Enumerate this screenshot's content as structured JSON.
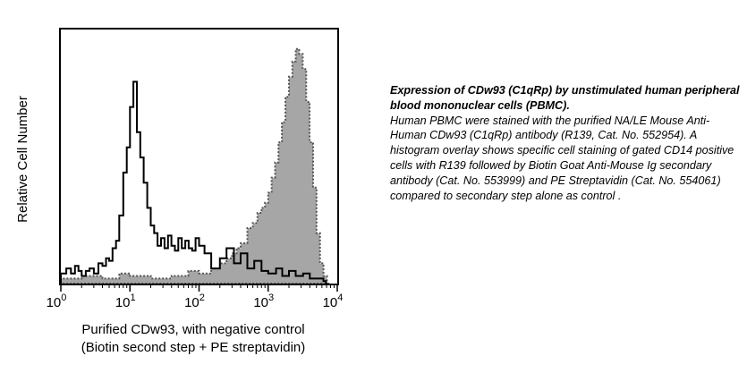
{
  "chart_data": {
    "type": "area",
    "xscale": "log",
    "xlim": [
      1,
      10000
    ],
    "ylim": [
      0,
      1
    ],
    "grid": false,
    "ylabel": "Relative Cell Number",
    "xlabel_line1": "Purified CDw93, with negative control",
    "xlabel_line2": "(Biotin second step + PE streptavidin)",
    "xticks": [
      {
        "value": 1,
        "base": "10",
        "exp": "0"
      },
      {
        "value": 10,
        "base": "10",
        "exp": "1"
      },
      {
        "value": 100,
        "base": "10",
        "exp": "2"
      },
      {
        "value": 1000,
        "base": "10",
        "exp": "3"
      },
      {
        "value": 10000,
        "base": "10",
        "exp": "4"
      }
    ],
    "series": [
      {
        "style": "open line (secondary step alone control)",
        "color": "#000000",
        "x": [
          1,
          1.2,
          1.4,
          1.6,
          1.8,
          2.0,
          2.3,
          2.6,
          3.0,
          3.5,
          4.0,
          4.5,
          5.0,
          5.6,
          6.3,
          7.0,
          8.0,
          9.0,
          10.0,
          11.2,
          12.6,
          14.1,
          15.8,
          17.8,
          20.0,
          22.4,
          25.1,
          28.2,
          31.6,
          35.5,
          39.8,
          44.7,
          50.1,
          56.2,
          63.1,
          70.8,
          79.4,
          89.1,
          100,
          120,
          150,
          200,
          250,
          320,
          400,
          500,
          630,
          800,
          1000,
          1300,
          1600,
          2000,
          2500,
          3200,
          4000,
          5000,
          6300
        ],
        "y": [
          0.04,
          0.06,
          0.04,
          0.07,
          0.05,
          0.03,
          0.05,
          0.06,
          0.04,
          0.08,
          0.07,
          0.1,
          0.09,
          0.14,
          0.17,
          0.27,
          0.44,
          0.54,
          0.7,
          0.8,
          0.6,
          0.5,
          0.4,
          0.3,
          0.23,
          0.2,
          0.15,
          0.18,
          0.14,
          0.19,
          0.15,
          0.13,
          0.18,
          0.14,
          0.17,
          0.14,
          0.13,
          0.18,
          0.15,
          0.12,
          0.06,
          0.1,
          0.14,
          0.08,
          0.12,
          0.06,
          0.09,
          0.05,
          0.04,
          0.06,
          0.03,
          0.05,
          0.03,
          0.04,
          0.02,
          0.02,
          0.01
        ]
      },
      {
        "style": "filled grey (CDw93 stained)",
        "color": "#a6a6a6",
        "x": [
          1,
          2,
          4,
          7,
          10,
          20,
          40,
          70,
          100,
          150,
          200,
          250,
          300,
          350,
          400,
          500,
          600,
          700,
          800,
          900,
          1000,
          1120,
          1260,
          1410,
          1580,
          1780,
          2000,
          2240,
          2510,
          2820,
          3160,
          3550,
          3980,
          4470,
          5010,
          5620,
          6310,
          7080
        ],
        "y": [
          0.02,
          0.03,
          0.02,
          0.04,
          0.03,
          0.02,
          0.03,
          0.05,
          0.04,
          0.06,
          0.08,
          0.1,
          0.12,
          0.14,
          0.16,
          0.22,
          0.24,
          0.28,
          0.3,
          0.32,
          0.36,
          0.42,
          0.48,
          0.56,
          0.64,
          0.74,
          0.82,
          0.88,
          0.93,
          0.91,
          0.85,
          0.72,
          0.56,
          0.38,
          0.2,
          0.08,
          0.03,
          0.0
        ]
      }
    ]
  },
  "caption": {
    "title": "Expression of CDw93 (C1qRp) by unstimulated human peripheral blood mononuclear cells (PBMC).",
    "body": "Human PBMC were stained with the purified NA/LE Mouse Anti-Human CDw93 (C1qRp) antibody (R139, Cat. No. 552954).  A histogram overlay shows specific cell staining of gated CD14 positive cells with R139 followed by Biotin Goat Anti-Mouse Ig secondary antibody (Cat. No. 553999) and PE Streptavidin (Cat. No. 554061) compared to secondary step alone as control ."
  }
}
